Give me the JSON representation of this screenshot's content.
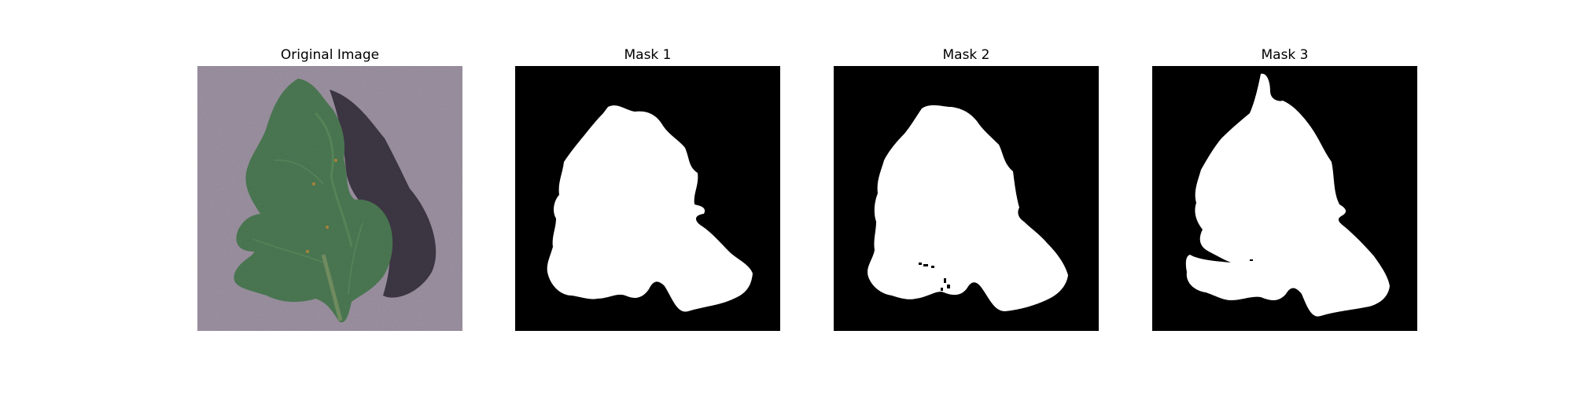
{
  "figure": {
    "panels": [
      {
        "title": "Original Image"
      },
      {
        "title": "Mask 1"
      },
      {
        "title": "Mask 2"
      },
      {
        "title": "Mask 3"
      }
    ],
    "colors": {
      "background": "#ffffff",
      "mask_background": "#000000",
      "mask_foreground": "#ffffff",
      "photo_backdrop": "#8d8292",
      "leaf": "#3f6b45"
    }
  }
}
